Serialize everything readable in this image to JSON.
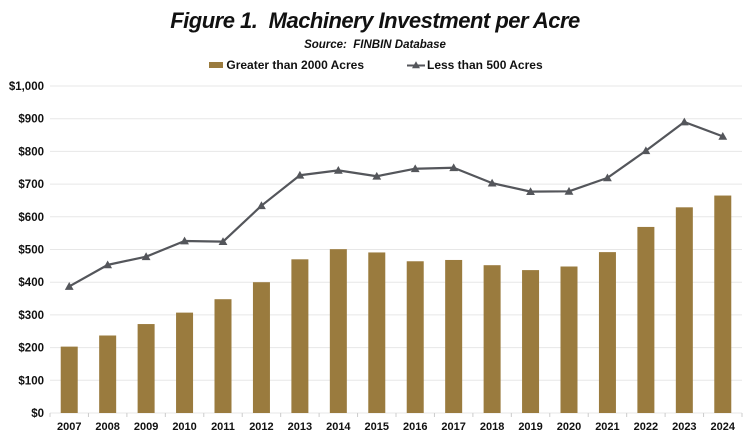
{
  "header": {
    "title": "Figure 1.  Machinery Investment per Acre",
    "subtitle": "Source:  FINBIN Database"
  },
  "legend": {
    "items": [
      {
        "label": "Greater than 2000 Acres",
        "swatch": "bar-swatch",
        "color": "#9A7B3E"
      },
      {
        "label": "Less than 500 Acres",
        "swatch": "line-triangle-swatch",
        "color": "#54565B"
      }
    ]
  },
  "chart_data": {
    "type": "bar",
    "title": "Figure 1. Machinery Investment per Acre",
    "subtitle": "Source: FINBIN Database",
    "categories": [
      "2007",
      "2008",
      "2009",
      "2010",
      "2011",
      "2012",
      "2013",
      "2014",
      "2015",
      "2016",
      "2017",
      "2018",
      "2019",
      "2020",
      "2021",
      "2022",
      "2023",
      "2024"
    ],
    "series": [
      {
        "name": "Greater than 2000 Acres",
        "type": "bar",
        "color": "#9A7B3E",
        "values": [
          203,
          237,
          272,
          307,
          348,
          400,
          470,
          501,
          491,
          464,
          468,
          452,
          437,
          448,
          492,
          569,
          629,
          665
        ]
      },
      {
        "name": "Less than 500 Acres",
        "type": "line",
        "color": "#54565B",
        "marker": "triangle",
        "values": [
          387,
          453,
          478,
          526,
          524,
          634,
          727,
          742,
          724,
          747,
          750,
          703,
          677,
          678,
          719,
          802,
          890,
          846
        ]
      }
    ],
    "xlabel": "",
    "ylabel": "",
    "ylim": [
      0,
      1000
    ],
    "ytick_step": 100,
    "ytick_prefix": "$",
    "grid": "horizontal",
    "gridline_color": "#E7E7E7",
    "axis_tick_color": "#CCCCCC",
    "legend_position": "top"
  }
}
